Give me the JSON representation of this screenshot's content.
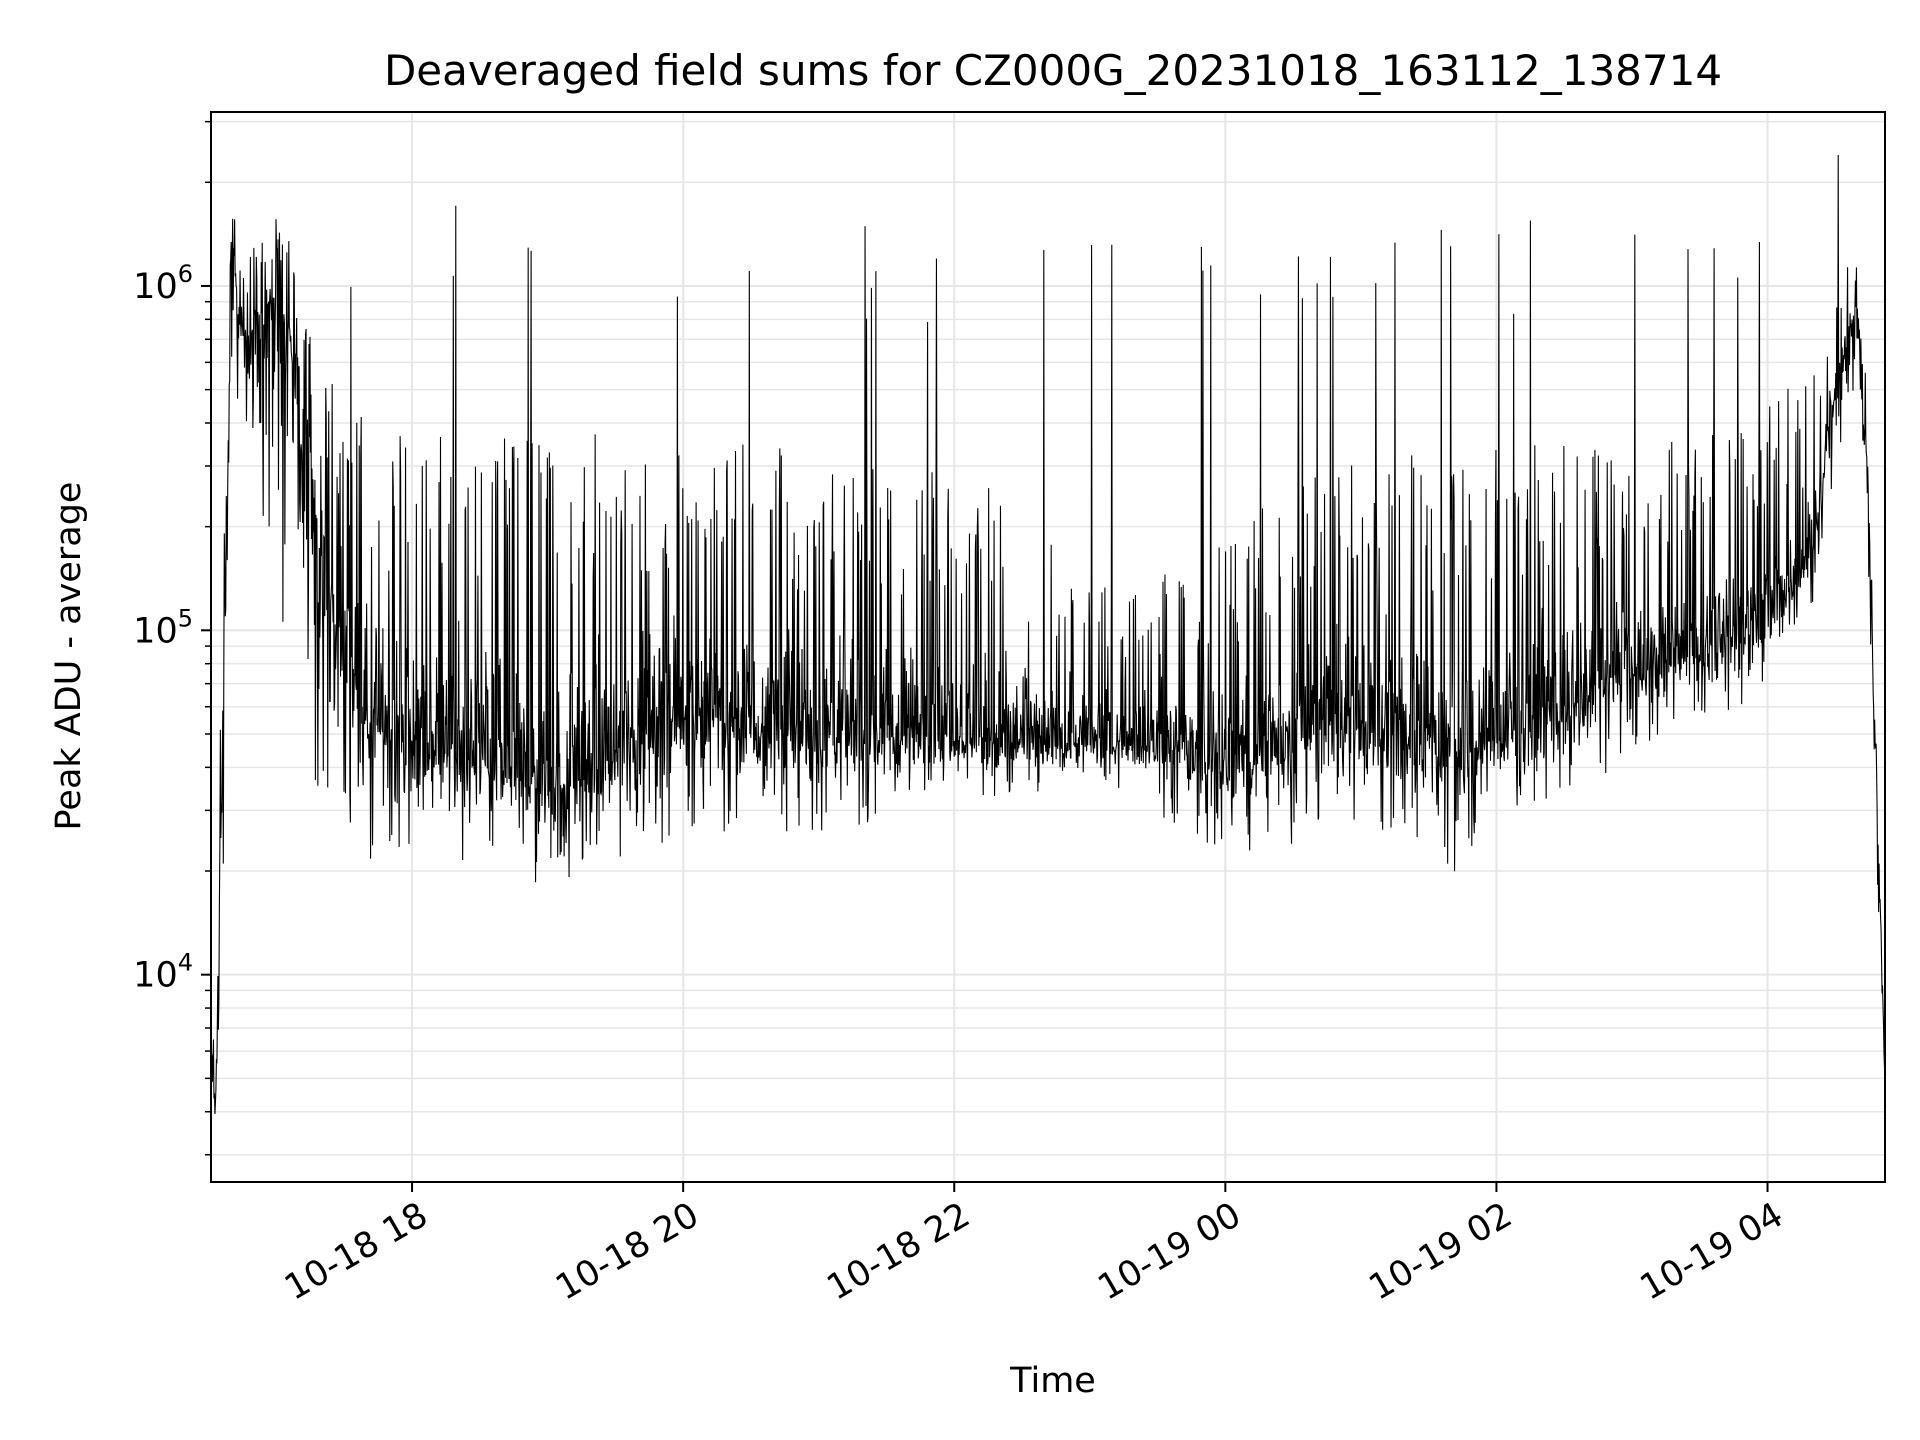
{
  "chart_data": {
    "type": "line",
    "title": "Deaveraged field sums for CZ000G_20231018_163112_138714",
    "xlabel": "Time",
    "ylabel": "Peak ADU - average",
    "y_scale": "log",
    "ylim": [
      2500,
      3200000
    ],
    "xlim": [
      "2023-10-18 16:31",
      "2023-10-19 04:52"
    ],
    "grid": true,
    "line_color": "#000000",
    "grid_color": "#e6e6e6",
    "x_ticks": [
      {
        "t": "2023-10-18 18:00",
        "label": "10-18 18"
      },
      {
        "t": "2023-10-18 20:00",
        "label": "10-18 20"
      },
      {
        "t": "2023-10-18 22:00",
        "label": "10-18 22"
      },
      {
        "t": "2023-10-19 00:00",
        "label": "10-19 00"
      },
      {
        "t": "2023-10-19 02:00",
        "label": "10-19 02"
      },
      {
        "t": "2023-10-19 04:00",
        "label": "10-19 04"
      }
    ],
    "y_ticks": [
      {
        "value": 10000,
        "base": "10",
        "exp": "4"
      },
      {
        "value": 100000,
        "base": "10",
        "exp": "5"
      },
      {
        "value": 1000000,
        "base": "10",
        "exp": "6"
      }
    ],
    "series": [
      {
        "x": [
          "2023-10-18 16:31",
          "2023-10-18 16:33",
          "2023-10-18 16:35",
          "2023-10-18 16:38",
          "2023-10-18 16:40",
          "2023-10-18 16:43",
          "2023-10-18 16:46",
          "2023-10-18 16:50",
          "2023-10-18 16:55",
          "2023-10-18 17:00",
          "2023-10-18 17:05",
          "2023-10-18 17:10",
          "2023-10-18 17:15",
          "2023-10-18 17:20",
          "2023-10-18 17:30",
          "2023-10-18 17:40",
          "2023-10-18 17:50",
          "2023-10-18 18:00",
          "2023-10-18 18:20",
          "2023-10-18 18:40",
          "2023-10-18 19:00",
          "2023-10-18 19:20",
          "2023-10-18 19:40",
          "2023-10-18 20:00",
          "2023-10-18 20:20",
          "2023-10-18 20:40",
          "2023-10-18 21:00",
          "2023-10-18 21:20",
          "2023-10-18 21:40",
          "2023-10-18 22:00",
          "2023-10-18 22:20",
          "2023-10-18 22:40",
          "2023-10-18 23:00",
          "2023-10-18 23:20",
          "2023-10-18 23:40",
          "2023-10-19 00:00",
          "2023-10-19 00:20",
          "2023-10-19 00:40",
          "2023-10-19 01:00",
          "2023-10-19 01:20",
          "2023-10-19 01:40",
          "2023-10-19 02:00",
          "2023-10-19 02:20",
          "2023-10-19 02:40",
          "2023-10-19 03:00",
          "2023-10-19 03:20",
          "2023-10-19 03:40",
          "2023-10-19 04:00",
          "2023-10-19 04:10",
          "2023-10-19 04:20",
          "2023-10-19 04:30",
          "2023-10-19 04:40",
          "2023-10-19 04:45",
          "2023-10-19 04:50",
          "2023-10-19 04:52"
        ],
        "y": [
          6000,
          4000,
          20000,
          150000,
          1600000,
          800000,
          650000,
          700000,
          900000,
          800000,
          650000,
          500000,
          300000,
          150000,
          80000,
          60000,
          55000,
          50000,
          45000,
          40000,
          35000,
          40000,
          50000,
          60000,
          55000,
          50000,
          50000,
          48000,
          50000,
          50000,
          48000,
          47000,
          47000,
          48000,
          45000,
          40000,
          45000,
          55000,
          55000,
          50000,
          45000,
          50000,
          55000,
          65000,
          75000,
          85000,
          95000,
          110000,
          130000,
          180000,
          500000,
          900000,
          200000,
          15000,
          5000
        ],
        "envelope_upper": [
          9000,
          6000,
          60000,
          400000,
          1800000,
          1400000,
          1100000,
          1300000,
          1500000,
          1600000,
          1400000,
          1100000,
          800000,
          600000,
          500000,
          420000,
          400000,
          380000,
          420000,
          380000,
          350000,
          380000,
          320000,
          330000,
          350000,
          360000,
          330000,
          300000,
          320000,
          300000,
          260000,
          200000,
          150000,
          140000,
          150000,
          180000,
          250000,
          300000,
          320000,
          330000,
          330000,
          340000,
          350000,
          360000,
          370000,
          380000,
          400000,
          450000,
          520000,
          600000,
          1000000,
          1300000,
          500000,
          20000,
          11000
        ],
        "envelope_lower": [
          4000,
          3500,
          5000,
          50000,
          600000,
          350000,
          250000,
          200000,
          150000,
          70000,
          45000,
          35000,
          30000,
          25000,
          22000,
          21000,
          21000,
          22000,
          21000,
          20000,
          18000,
          20000,
          22000,
          26000,
          25000,
          25000,
          26000,
          27000,
          29000,
          32000,
          33000,
          34000,
          35000,
          34000,
          25000,
          22000,
          22000,
          26000,
          28000,
          24000,
          19000,
          28000,
          32000,
          36000,
          42000,
          50000,
          55000,
          65000,
          80000,
          120000,
          300000,
          500000,
          100000,
          8000,
          4500
        ],
        "spike_peaks": [
          1750000,
          1950000,
          1700000,
          1300000,
          1450000,
          1500000,
          1400000,
          1350000,
          1550000,
          1500000,
          1250000,
          1650000,
          1400000,
          1600000,
          1700000,
          1450000,
          1600000,
          1400000,
          1750000,
          1300000,
          1500000,
          1450000,
          1300000,
          1500000,
          1600000,
          1650000,
          1550000,
          1600000,
          1400000,
          1500000,
          1550000,
          2400000
        ]
      }
    ]
  }
}
